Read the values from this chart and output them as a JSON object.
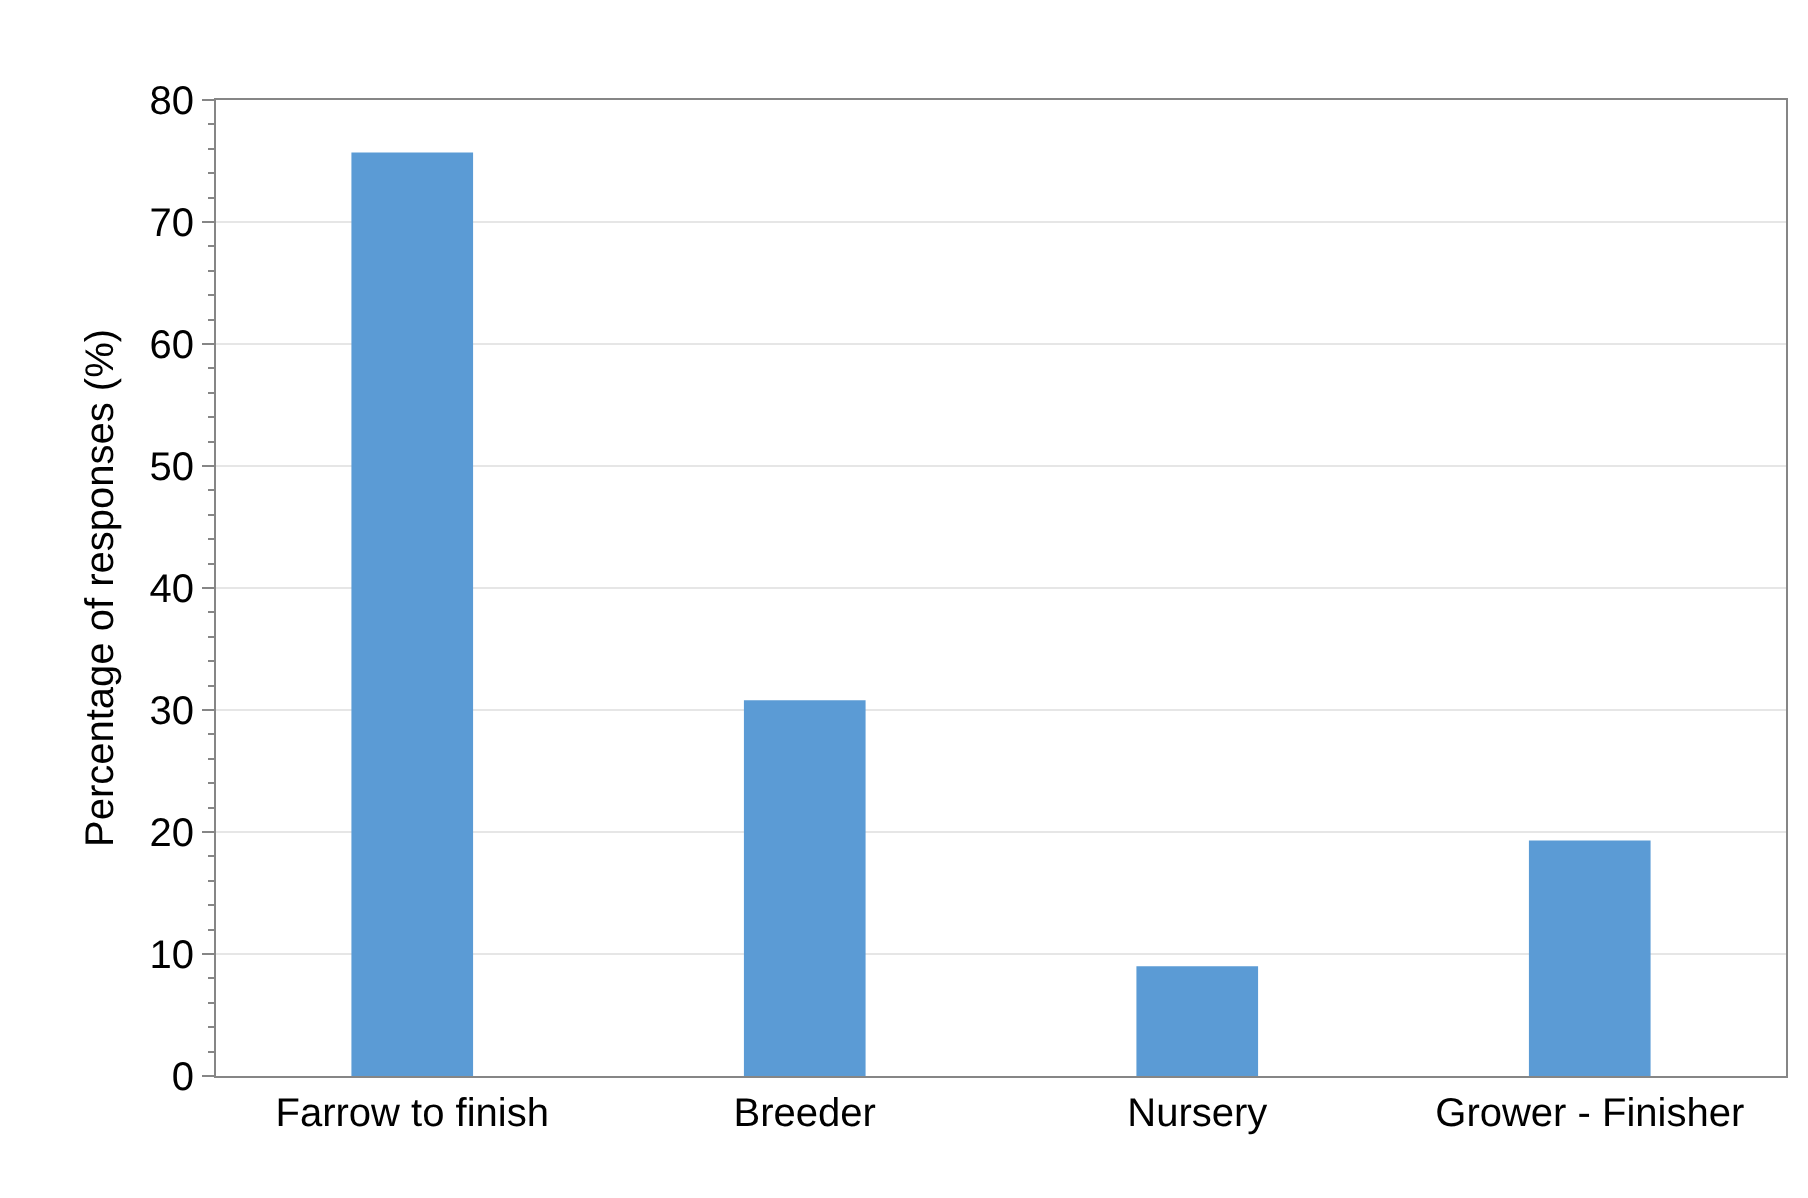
{
  "chart_data": {
    "type": "bar",
    "ylabel": "Percentage of responses (%)",
    "categories": [
      "Farrow to finish",
      "Breeder",
      "Nursery",
      "Grower - Finisher"
    ],
    "values": [
      75.7,
      30.8,
      9.0,
      19.3
    ],
    "color": "#5b9bd5",
    "ylim": [
      0,
      80
    ],
    "yticks": [
      0,
      10,
      20,
      30,
      40,
      50,
      60,
      70,
      80
    ],
    "grid": "y"
  }
}
